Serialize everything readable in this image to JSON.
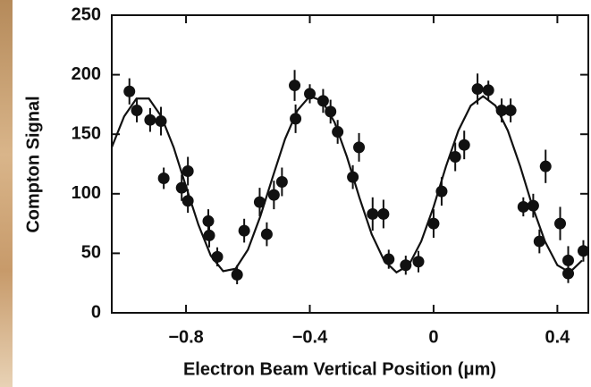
{
  "chart_data": {
    "type": "scatter",
    "xlabel": "Electron Beam Vertical Position  (μm)",
    "ylabel": "Compton Signal",
    "xlim": [
      -1.04,
      0.5
    ],
    "ylim": [
      0,
      250
    ],
    "xticks": [
      {
        "value": -0.8,
        "label": "−0.8"
      },
      {
        "value": -0.4,
        "label": "−0.4"
      },
      0,
      0.4
    ],
    "yticks": [
      0,
      50,
      100,
      150,
      200,
      250
    ],
    "series": [
      {
        "type": "scatter",
        "color": "#111111",
        "x": [
          -0.983,
          -0.959,
          -0.916,
          -0.881,
          -0.872,
          -0.814,
          -0.794,
          -0.794,
          -0.728,
          -0.725,
          -0.699,
          -0.635,
          -0.612,
          -0.562,
          -0.539,
          -0.516,
          -0.49,
          -0.449,
          -0.446,
          -0.4,
          -0.357,
          -0.333,
          -0.31,
          -0.261,
          -0.241,
          -0.197,
          -0.162,
          -0.145,
          -0.09,
          -0.049,
          0.0,
          0.026,
          0.07,
          0.099,
          0.142,
          0.177,
          0.22,
          0.249,
          0.29,
          0.322,
          0.342,
          0.362,
          0.409,
          0.435,
          0.435,
          0.484
        ],
        "values": [
          186,
          170,
          162,
          161,
          113,
          105,
          119,
          94,
          77,
          65,
          47,
          32,
          69,
          93,
          66,
          99,
          110,
          191,
          163,
          184,
          178,
          169,
          152,
          114,
          139,
          83,
          83,
          45,
          40,
          43,
          75,
          102,
          131,
          141,
          188,
          187,
          170,
          170,
          89,
          90,
          60,
          123,
          75,
          44,
          33,
          52
        ],
        "errors": [
          11,
          10,
          10,
          12,
          9,
          11,
          12,
          10,
          10,
          10,
          8,
          8,
          10,
          12,
          10,
          12,
          12,
          13,
          12,
          8,
          10,
          10,
          10,
          10,
          12,
          14,
          12,
          8,
          8,
          9,
          12,
          12,
          12,
          12,
          13,
          8,
          10,
          10,
          8,
          10,
          10,
          14,
          14,
          12,
          8,
          9
        ]
      },
      {
        "type": "line",
        "color": "#111111",
        "x": [
          -1.04,
          -1.0,
          -0.96,
          -0.92,
          -0.88,
          -0.84,
          -0.8,
          -0.76,
          -0.72,
          -0.68,
          -0.64,
          -0.6,
          -0.56,
          -0.52,
          -0.48,
          -0.44,
          -0.4,
          -0.36,
          -0.32,
          -0.28,
          -0.24,
          -0.2,
          -0.16,
          -0.12,
          -0.08,
          -0.04,
          0.0,
          0.04,
          0.08,
          0.12,
          0.16,
          0.2,
          0.24,
          0.28,
          0.32,
          0.36,
          0.4,
          0.44,
          0.48
        ],
        "values": [
          139,
          165,
          180,
          180,
          165,
          139,
          106,
          74,
          48,
          35,
          37,
          53,
          81,
          114,
          146,
          170,
          182,
          178,
          160,
          131,
          97,
          66,
          44,
          34,
          40,
          60,
          89,
          123,
          153,
          174,
          182,
          174,
          153,
          123,
          89,
          60,
          40,
          34,
          44
        ]
      }
    ]
  }
}
